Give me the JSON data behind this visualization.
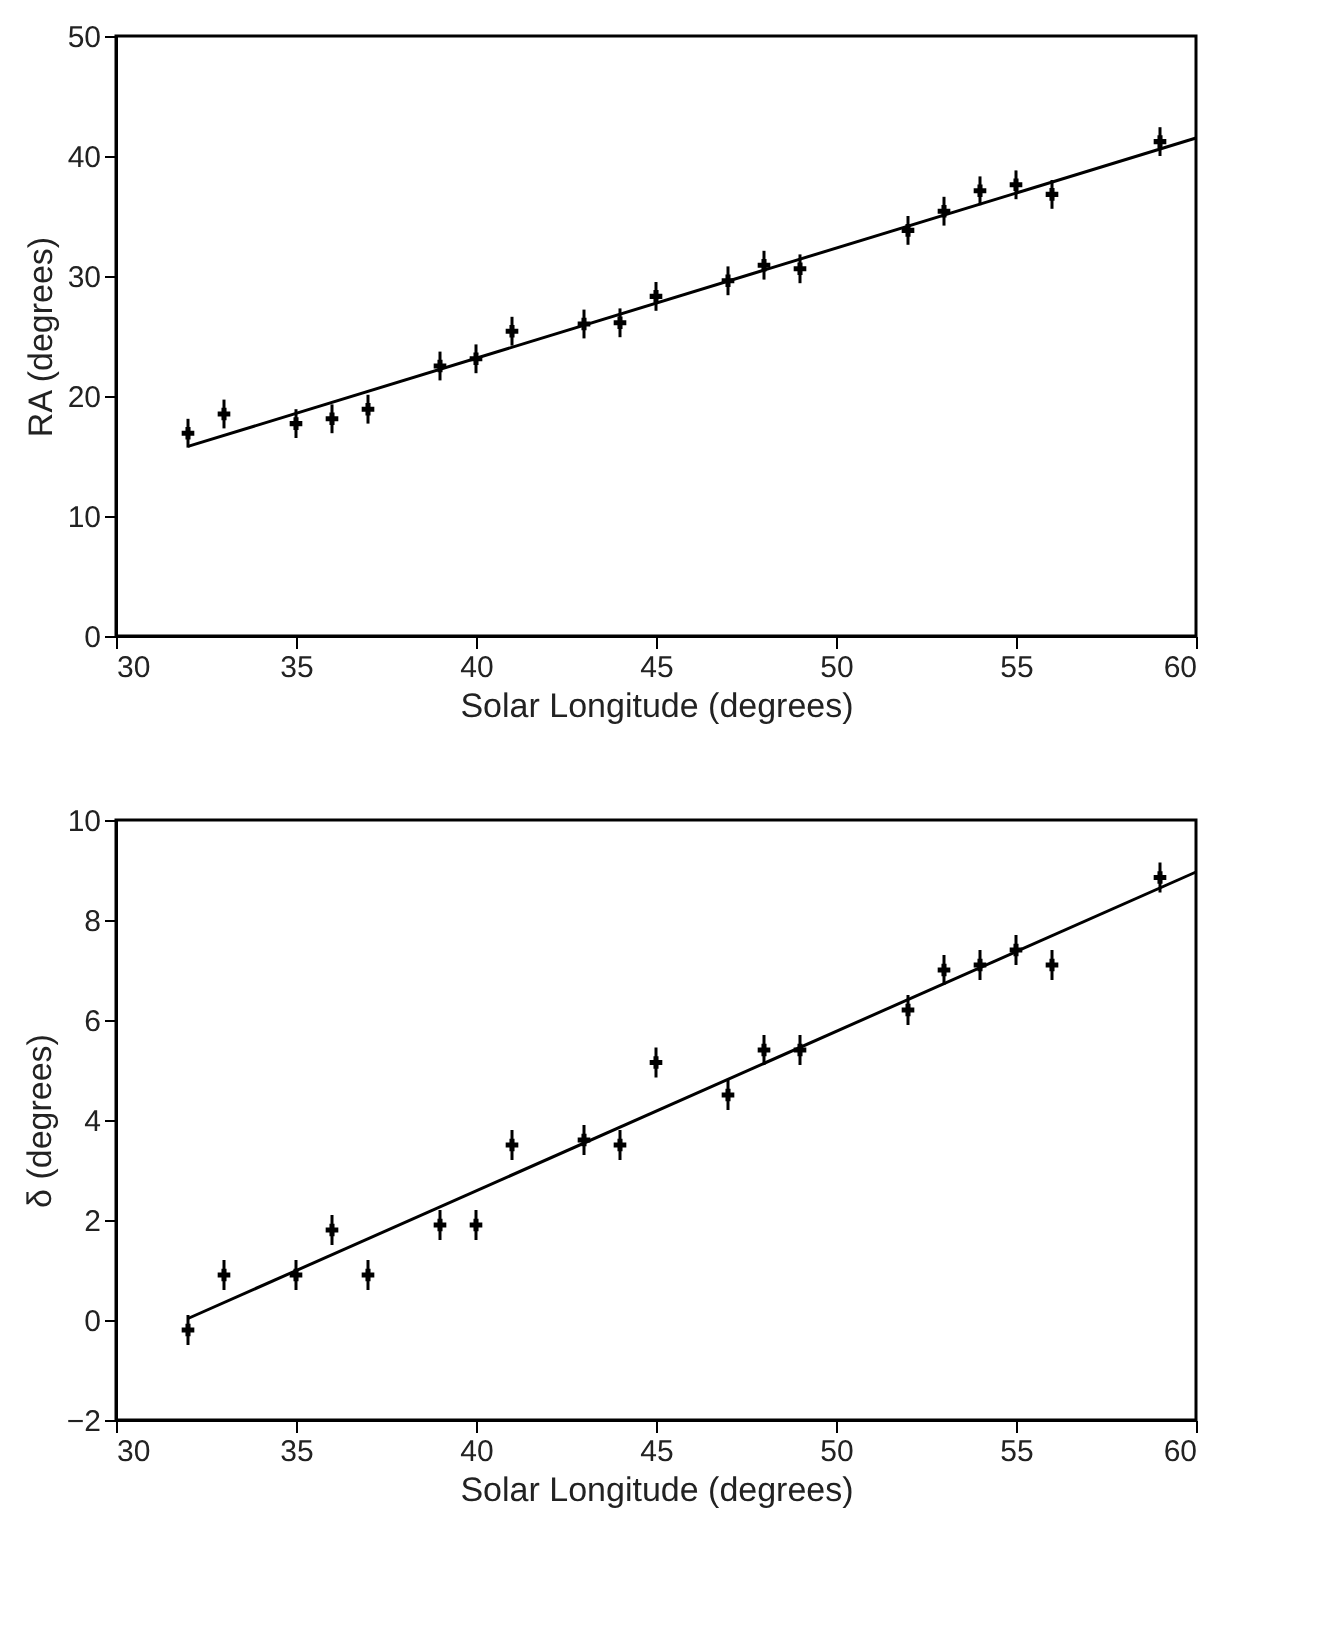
{
  "chart_data": [
    {
      "type": "scatter",
      "xlabel": "Solar Longitude (degrees)",
      "ylabel": "RA (degrees)",
      "xlim": [
        30,
        60
      ],
      "xticks": [
        30,
        35,
        40,
        45,
        50,
        55,
        60
      ],
      "ylim": [
        0,
        50
      ],
      "yticks": [
        0,
        10,
        20,
        30,
        40,
        50
      ],
      "grid": false,
      "series": [
        {
          "marker": "cross",
          "color": "#000000",
          "x": [
            32,
            33,
            35,
            36,
            37,
            39,
            40,
            41,
            43,
            44,
            45,
            47,
            48,
            49,
            52,
            53,
            54,
            55,
            56,
            59
          ],
          "values": [
            16.9,
            18.5,
            17.7,
            18.1,
            18.9,
            22.5,
            23.1,
            25.4,
            26.0,
            26.1,
            28.3,
            29.6,
            30.9,
            30.6,
            33.8,
            35.4,
            37.1,
            37.6,
            36.8,
            41.2
          ],
          "errors": [
            1.2,
            1.2,
            1.2,
            1.2,
            1.2,
            1.2,
            1.2,
            1.2,
            1.2,
            1.2,
            1.2,
            1.2,
            1.2,
            1.2,
            1.2,
            1.2,
            1.2,
            1.2,
            1.2,
            1.2
          ]
        },
        {
          "type": "line",
          "marker": "none",
          "color": "#000000",
          "line_style": "solid",
          "x": [
            32,
            60
          ],
          "values": [
            15.8,
            41.5
          ]
        }
      ]
    },
    {
      "type": "scatter",
      "xlabel": "Solar Longitude (degrees)",
      "ylabel": "δ (degrees)",
      "xlim": [
        30,
        60
      ],
      "xticks": [
        30,
        35,
        40,
        45,
        50,
        55,
        60
      ],
      "ylim": [
        -2,
        10
      ],
      "yticks": [
        -2,
        0,
        2,
        4,
        6,
        8,
        10
      ],
      "grid": false,
      "series": [
        {
          "marker": "cross",
          "color": "#000000",
          "x": [
            32,
            33,
            35,
            36,
            37,
            39,
            40,
            41,
            43,
            44,
            45,
            47,
            48,
            49,
            52,
            53,
            54,
            55,
            56,
            59
          ],
          "values": [
            -0.2,
            0.9,
            0.9,
            1.8,
            0.9,
            1.9,
            1.9,
            3.5,
            3.6,
            3.5,
            5.15,
            4.5,
            5.4,
            5.4,
            6.2,
            7.0,
            7.1,
            7.4,
            7.1,
            8.85
          ],
          "errors": [
            0.3,
            0.3,
            0.3,
            0.3,
            0.3,
            0.3,
            0.3,
            0.3,
            0.3,
            0.3,
            0.3,
            0.3,
            0.3,
            0.3,
            0.3,
            0.3,
            0.3,
            0.3,
            0.3,
            0.3
          ]
        },
        {
          "type": "line",
          "marker": "none",
          "color": "#000000",
          "line_style": "solid",
          "x": [
            32,
            60
          ],
          "values": [
            0.03,
            8.96
          ]
        }
      ]
    }
  ]
}
